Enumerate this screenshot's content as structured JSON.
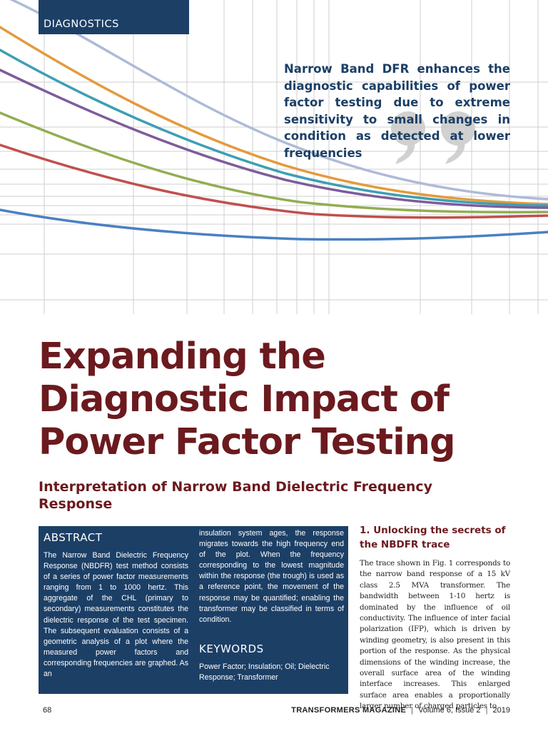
{
  "section_tag": "DIAGNOSTICS",
  "pull_quote": "Narrow Band DFR enhances the diagnostic capabilities of power factor testing due to extreme sensitivity to small changes in condition as detected at lower frequencies",
  "title_lines": [
    "Expanding the",
    "Diagnostic Impact of",
    "Power Factor Testing"
  ],
  "subtitle": "Interpretation of Narrow Band Dielectric Frequency Response",
  "abstract": {
    "heading": "ABSTRACT",
    "col1": "The Narrow Band Dielectric Frequency Response (NBDFR) test method consists of a series of power factor measurements ranging from 1 to 1000 hertz. This aggregate of the CHL (primary to secondary) measurements constitutes the dielectric response of the test specimen. The subsequent evaluation consists of a geometric analysis of a plot where the measured power factors and corresponding frequencies are graphed. As an",
    "col2": "insulation system ages, the response migrates towards the high frequency end of the plot. When the frequency corresponding to the lowest magnitude within the response (the trough) is used as a reference point, the movement of the response may be quantified; enabling the transformer may be classified in terms of condition."
  },
  "keywords": {
    "heading": "KEYWORDS",
    "text": "Power Factor; Insulation; Oil; Dielectric Response; Transformer"
  },
  "section1": {
    "heading": "1. Unlocking the secrets of the NBDFR trace",
    "body": "The trace shown in Fig. 1 corresponds to the narrow band response of a 15 kV class 2.5 MVA transformer. The bandwidth between 1-10 hertz is dominated by the influence of oil conductivity. The influence of inter facial polarization (IFP), which is driven by winding geometry, is also present in this portion of the response. As the physical dimensions of the winding increase, the overall surface area of the winding interface increases. This enlarged surface area enables a proportionally larger number of charged particles to"
  },
  "footer": {
    "page_number": "68",
    "magazine": "TRANSFORMERS MAGAZINE",
    "separator": "|",
    "issue": "Volume 6, Issue 2",
    "year": "2019"
  },
  "colors": {
    "navy": "#1c3f66",
    "maroon": "#6b1a1e",
    "curves": [
      "#aebad9",
      "#e49a3c",
      "#3d9fb4",
      "#7d5c9b",
      "#93ad52",
      "#c0504d",
      "#4a80c2"
    ]
  }
}
